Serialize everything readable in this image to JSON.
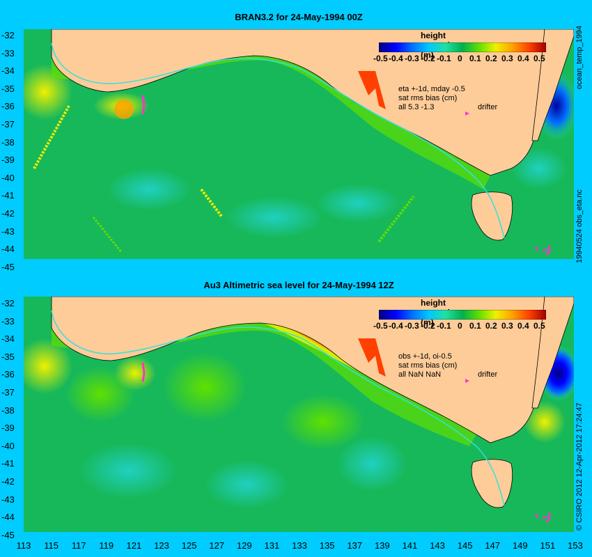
{
  "colors": {
    "background": "#00ccff",
    "land": "#fdcc99",
    "ocean_base": "#17b85a",
    "coast_current": "#33e0e0",
    "drifter": "#ff33cc"
  },
  "top_panel": {
    "title": "BRAN3.2 for 24-May-1994 00Z",
    "colorbar": {
      "title": "height anomaly (m)",
      "ticks": [
        "-0.5",
        "-0.4",
        "-0.3",
        "-0.2",
        "-0.1",
        "0",
        "0.1",
        "0.2",
        "0.3",
        "0.4",
        "0.5"
      ]
    },
    "note_lines": [
      "eta +-1d, mday -0.5",
      "sat rms bias (cm)",
      "all 5.3 -1.3"
    ],
    "drifter_label": "drifter",
    "right_labels": [
      "ocean_temp_1994",
      "19940524 obs_eta.nc"
    ]
  },
  "bottom_panel": {
    "title": "Au3 Altimetric sea level  for 24-May-1994 12Z",
    "colorbar": {
      "title": "height anomaly (m)",
      "ticks": [
        "-0.5",
        "-0.4",
        "-0.3",
        "-0.2",
        "-0.1",
        "0",
        "0.1",
        "0.2",
        "0.3",
        "0.4",
        "0.5"
      ]
    },
    "note_lines": [
      "obs +-1d, oi-0.5",
      "sat rms bias (cm)",
      "all NaN NaN"
    ],
    "drifter_label": "drifter",
    "right_labels": [
      "© CSIRO 2012   12-Apr-2012 17:24:47"
    ]
  },
  "y_axis_ticks": [
    "-32",
    "-33",
    "-34",
    "-35",
    "-36",
    "-37",
    "-38",
    "-39",
    "-40",
    "-41",
    "-42",
    "-43",
    "-44",
    "-45"
  ],
  "x_axis_ticks": [
    "113",
    "115",
    "117",
    "119",
    "121",
    "123",
    "125",
    "127",
    "129",
    "131",
    "133",
    "135",
    "137",
    "139",
    "141",
    "143",
    "145",
    "147",
    "149",
    "151",
    "153"
  ],
  "axis_ranges": {
    "longitude": [
      113,
      153
    ],
    "latitude": [
      -45,
      -31.5
    ]
  },
  "colorbar_range": [
    -0.5,
    0.5
  ],
  "colorbar_colors": [
    "#000080",
    "#0000ff",
    "#0070ff",
    "#00c8ff",
    "#20e0a0",
    "#00b050",
    "#60e000",
    "#f0f000",
    "#ffa000",
    "#ff4000",
    "#a00000"
  ]
}
